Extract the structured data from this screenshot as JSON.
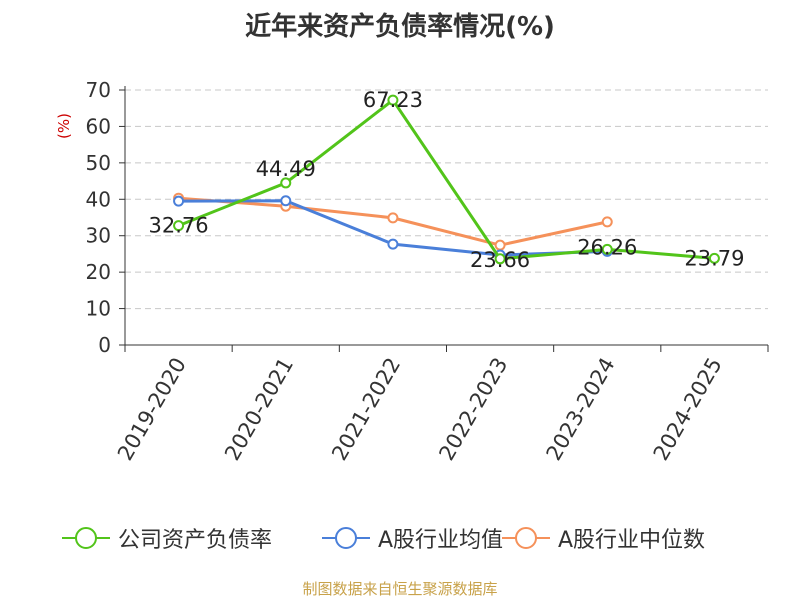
{
  "chart_data": {
    "type": "line",
    "title": "近年来资产负债率情况(%)",
    "ylabel": "(%)",
    "xlabel": "",
    "categories": [
      "2019-2020",
      "2020-2021",
      "2021-2022",
      "2022-2023",
      "2023-2024",
      "2024-2025"
    ],
    "ylim": [
      0,
      70
    ],
    "yticks": [
      0,
      10,
      20,
      30,
      40,
      50,
      60,
      70
    ],
    "grid": "horizontal-dashed",
    "legend_position": "bottom",
    "series": [
      {
        "name": "公司资产负债率",
        "color": "#52c41a",
        "values": [
          32.76,
          44.49,
          67.23,
          23.66,
          26.26,
          23.79
        ],
        "labels": [
          "32.76",
          "44.49",
          "67.23",
          "23.66",
          "26.26",
          "23.79"
        ]
      },
      {
        "name": "A股行业均值",
        "color": "#4a7fd9",
        "values": [
          39.5,
          39.6,
          27.7,
          24.7,
          25.7,
          null
        ]
      },
      {
        "name": "A股行业中位数",
        "color": "#f5915a",
        "values": [
          40.3,
          38.1,
          34.9,
          27.4,
          33.8,
          null
        ]
      }
    ]
  },
  "source_text": "制图数据来自恒生聚源数据库",
  "colors": {
    "axis": "#333333",
    "grid": "#c8c8c8",
    "ylabel": "#cc0000",
    "source": "#c8a24a"
  }
}
